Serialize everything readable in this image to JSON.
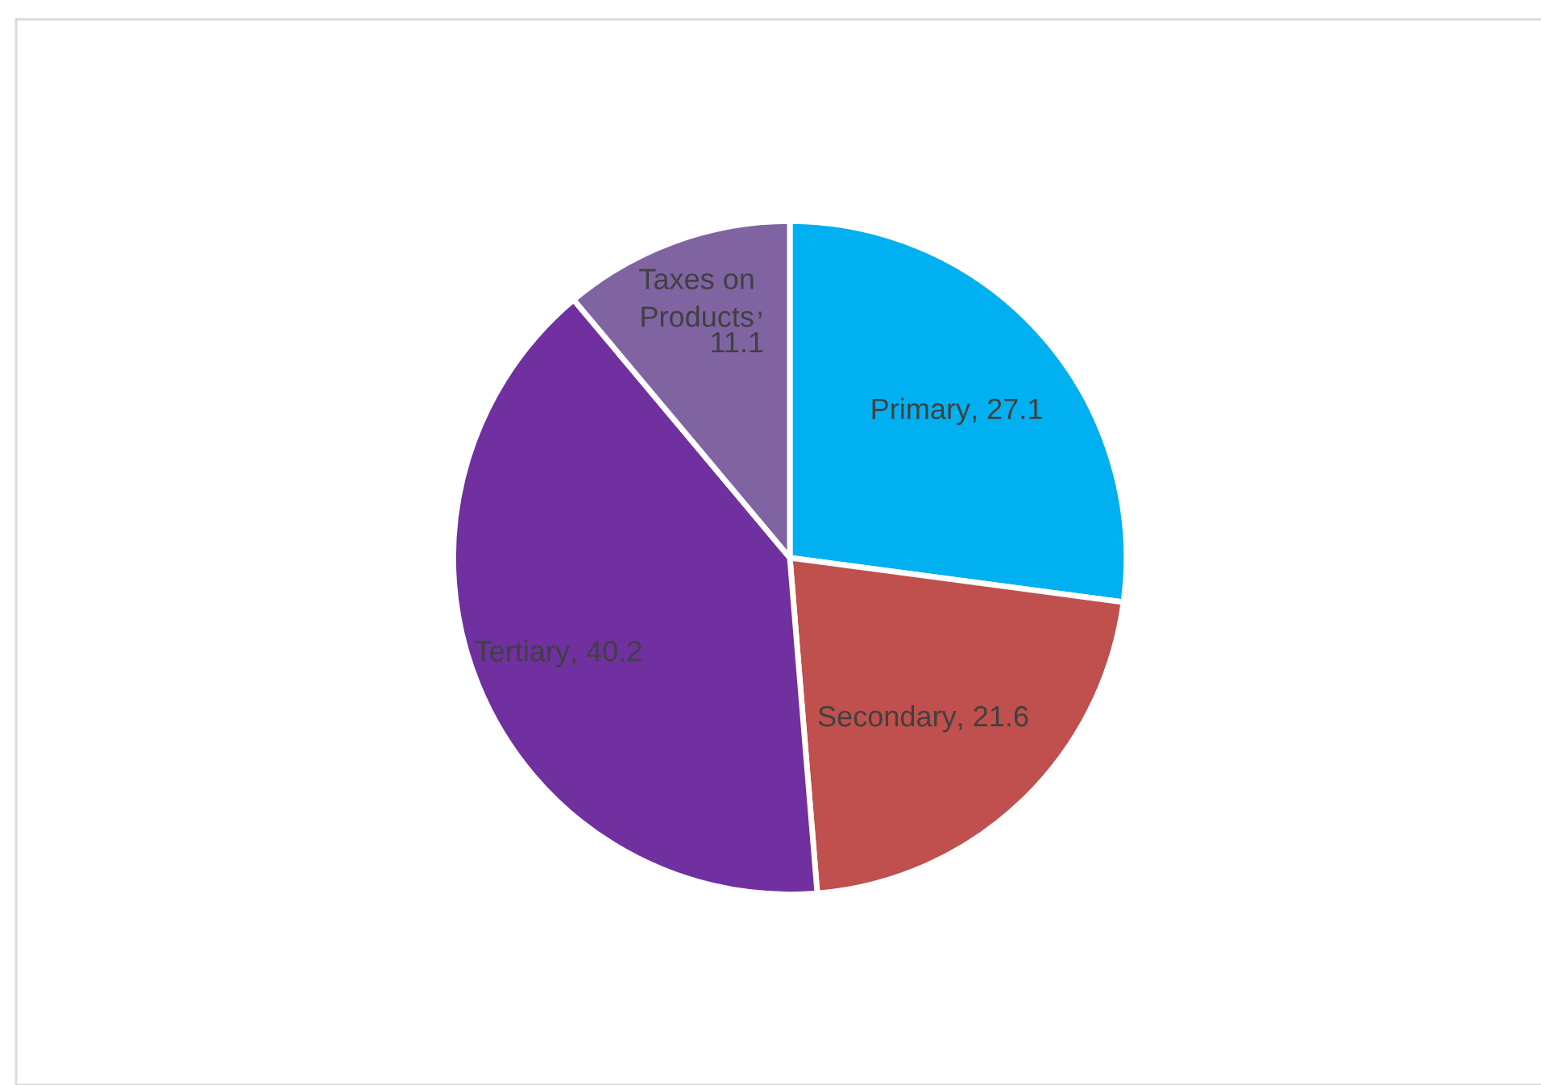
{
  "chart_data": {
    "type": "pie",
    "categories": [
      "Primary",
      "Secondary",
      "Tertiary",
      "Taxes on Products"
    ],
    "values": [
      27.1,
      21.6,
      40.2,
      11.1
    ],
    "colors": [
      "#00b0f0",
      "#c0504d",
      "#7030a0",
      "#8064a2"
    ],
    "value_labels": [
      ", 27.1",
      ", 21.6",
      ", 40.2",
      ", 11.1"
    ]
  }
}
